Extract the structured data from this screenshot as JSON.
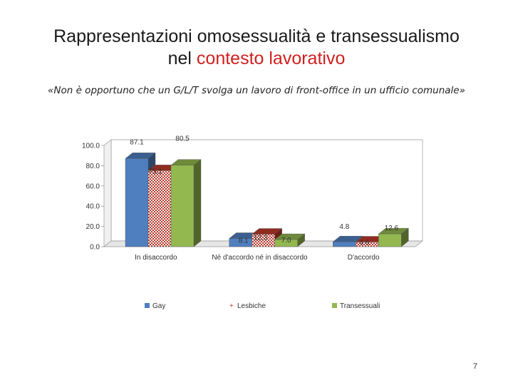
{
  "slide": {
    "title_line1": "Rappresentazioni omosessualità e transessualismo",
    "title_line2_black": "nel ",
    "title_line2_red": "contesto lavorativo",
    "subtitle": "«Non è opportuno che un G/L/T svolga un lavoro di front-office in un ufficio comunale»",
    "page_number": "7"
  },
  "colors": {
    "title_accent": "#d02020",
    "Gay": "#4f7fbf",
    "Lesbiche": "#c0392b",
    "Transessuali": "#93b84f"
  },
  "chart_data": {
    "type": "bar",
    "categories": [
      "In disaccordo",
      "Né d'accordo né in disaccordo",
      "D'accordo"
    ],
    "series": [
      {
        "name": "Gay",
        "values": [
          87.1,
          8.1,
          4.8
        ],
        "labels": [
          "87.1",
          "8.1",
          "4.8"
        ]
      },
      {
        "name": "Lesbiche",
        "values": [
          75.1,
          12.3,
          4.6
        ],
        "labels": [
          "75.1",
          "12.3",
          "4.6"
        ]
      },
      {
        "name": "Transessuali",
        "values": [
          80.5,
          7.0,
          12.6
        ],
        "labels": [
          "80.5",
          "7.0",
          "12.6"
        ]
      }
    ],
    "ylim": [
      0,
      100
    ],
    "yticks": [
      "0.0",
      "20.0",
      "40.0",
      "60.0",
      "80.0",
      "100.0"
    ],
    "legend_position": "bottom",
    "grid": false,
    "style": "3d"
  }
}
